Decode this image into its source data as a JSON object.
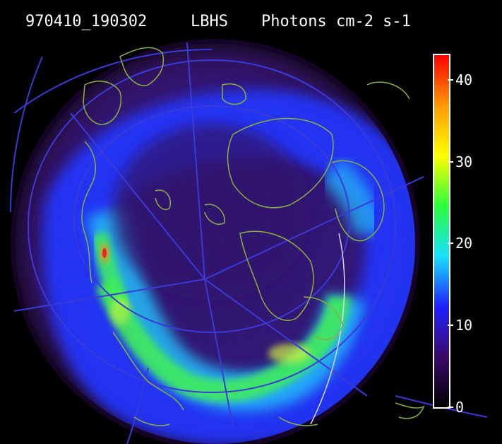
{
  "header": {
    "timestamp": "970410_190302",
    "band": "LBHS",
    "units": "Photons cm-2 s-1"
  },
  "image": {
    "subject": "auroral oval over polar region with coastline overlay",
    "palette": {
      "background": "#000000",
      "disk_base": "#2a0a5a",
      "oval_low": "#1a2cff",
      "oval_mid": "#19e0ff",
      "oval_high": "#3dff3d",
      "peak": "#ff2020",
      "coastline": "#7fa03c",
      "grid": "#3a3ad8"
    }
  },
  "colorbar": {
    "min": 0,
    "max": 43,
    "ticks": [
      {
        "value": 40,
        "label": "40"
      },
      {
        "value": 30,
        "label": "30"
      },
      {
        "value": 20,
        "label": "20"
      },
      {
        "value": 10,
        "label": "10"
      },
      {
        "value": 0,
        "label": "0"
      }
    ],
    "colors": [
      "#000000",
      "#3a0a6a",
      "#2020ff",
      "#19e0ff",
      "#2cff3a",
      "#ffff00",
      "#ff9900",
      "#ff0000"
    ]
  }
}
